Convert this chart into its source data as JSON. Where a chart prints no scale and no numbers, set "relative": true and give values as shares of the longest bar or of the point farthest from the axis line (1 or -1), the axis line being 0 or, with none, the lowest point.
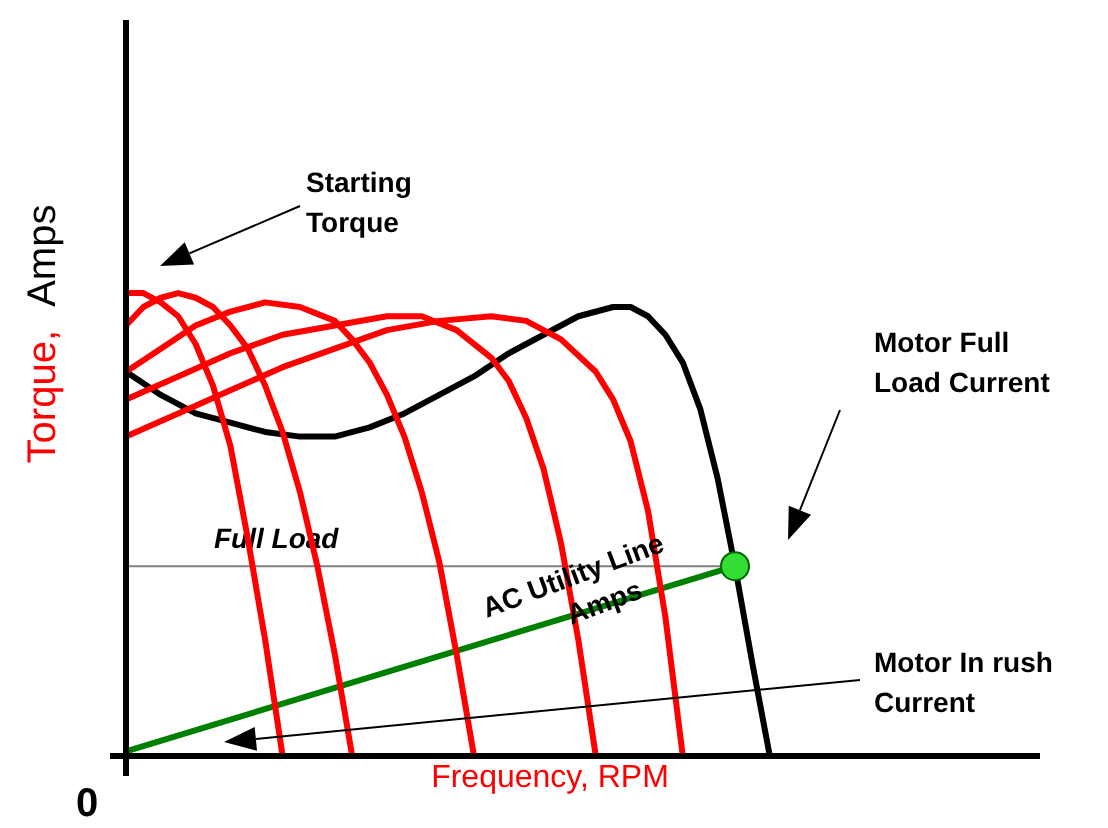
{
  "chart_data": {
    "type": "line",
    "relative": true,
    "xlabel": "Frequency, RPM",
    "ylabel": "Torque, Amps",
    "marker": "none",
    "line_style": "solid",
    "legend": false,
    "grid": false,
    "categories": [
      null,
      null,
      null,
      null,
      null,
      null,
      null,
      null,
      null,
      null,
      null,
      null,
      null,
      null,
      null,
      null,
      null,
      null,
      null,
      null,
      null,
      null,
      null,
      null,
      null,
      null,
      null,
      null,
      null,
      null,
      null,
      null,
      null,
      null,
      null,
      null,
      null,
      null,
      null,
      null,
      null,
      null,
      null,
      null,
      null,
      null,
      null,
      null,
      null,
      null,
      null
    ],
    "series": [
      {
        "color": "#ff0000",
        "values": [
          1.0,
          1.0,
          0.98,
          0.95,
          0.89,
          0.8,
          0.67,
          0.47,
          0.25,
          0,
          null,
          null,
          null,
          null,
          null,
          null,
          null,
          null,
          null,
          null,
          null,
          null,
          null,
          null,
          null,
          null,
          null,
          null,
          null,
          null,
          null,
          null,
          null,
          null,
          null,
          null,
          null,
          null,
          null,
          null,
          null,
          null,
          null,
          null,
          null,
          null,
          null,
          null,
          null,
          null,
          null
        ]
      },
      {
        "color": "#ff0000",
        "values": [
          0.93,
          0.97,
          0.99,
          1.0,
          0.99,
          0.97,
          0.93,
          0.88,
          0.8,
          0.7,
          0.57,
          0.41,
          0.22,
          0,
          null,
          null,
          null,
          null,
          null,
          null,
          null,
          null,
          null,
          null,
          null,
          null,
          null,
          null,
          null,
          null,
          null,
          null,
          null,
          null,
          null,
          null,
          null,
          null,
          null,
          null,
          null,
          null,
          null,
          null,
          null,
          null,
          null,
          null,
          null,
          null,
          null
        ]
      },
      {
        "color": "#ff0000",
        "values": [
          0.83,
          null,
          0.88,
          null,
          0.93,
          null,
          0.96,
          null,
          0.98,
          null,
          0.97,
          null,
          0.94,
          0.9,
          0.85,
          0.78,
          0.69,
          0.57,
          0.42,
          0.22,
          0,
          null,
          null,
          null,
          null,
          null,
          null,
          null,
          null,
          null,
          null,
          null,
          null,
          null,
          null,
          null,
          null,
          null,
          null,
          null,
          null,
          null,
          null,
          null,
          null,
          null,
          null,
          null,
          null,
          null,
          null
        ]
      },
      {
        "color": "#ff0000",
        "values": [
          0.77,
          null,
          null,
          0.82,
          null,
          null,
          0.87,
          null,
          null,
          0.91,
          null,
          null,
          0.93,
          null,
          null,
          0.95,
          null,
          0.95,
          null,
          0.92,
          null,
          0.86,
          0.81,
          0.73,
          0.62,
          0.46,
          0.25,
          0,
          null,
          null,
          null,
          null,
          null,
          null,
          null,
          null,
          null,
          null,
          null,
          null,
          null,
          null,
          null,
          null,
          null,
          null,
          null,
          null,
          null,
          null,
          null
        ]
      },
      {
        "color": "#ff0000",
        "values": [
          0.69,
          null,
          null,
          0.74,
          null,
          null,
          0.79,
          null,
          null,
          0.84,
          null,
          null,
          0.88,
          null,
          null,
          0.92,
          null,
          null,
          0.94,
          null,
          null,
          0.95,
          null,
          0.94,
          null,
          0.9,
          null,
          0.83,
          0.77,
          0.68,
          0.53,
          0.3,
          0,
          null,
          null,
          null,
          null,
          null,
          null,
          null,
          null,
          null,
          null,
          null,
          null,
          null,
          null,
          null,
          null,
          null,
          null
        ]
      },
      {
        "color": "#000000",
        "values": [
          0.83,
          null,
          0.78,
          null,
          0.74,
          null,
          0.72,
          null,
          0.7,
          null,
          0.69,
          null,
          0.69,
          null,
          0.71,
          null,
          0.74,
          null,
          0.78,
          null,
          0.82,
          null,
          0.87,
          null,
          0.91,
          null,
          0.95,
          null,
          0.97,
          0.97,
          0.95,
          0.91,
          0.85,
          0.75,
          0.6,
          0.41,
          0.2,
          0,
          null,
          null,
          null,
          null,
          null,
          null,
          null,
          null,
          null,
          null,
          null,
          null,
          null
        ]
      },
      {
        "color": "#008000",
        "values": [
          0.01,
          null,
          null,
          null,
          null,
          null,
          null,
          null,
          null,
          null,
          null,
          null,
          null,
          null,
          null,
          null,
          null,
          null,
          null,
          null,
          null,
          null,
          null,
          null,
          null,
          null,
          null,
          null,
          null,
          null,
          null,
          null,
          null,
          null,
          null,
          0.41,
          null,
          null,
          null,
          null,
          null,
          null,
          null,
          null,
          null,
          null,
          null,
          null,
          null,
          null,
          null
        ]
      }
    ],
    "ref_lines": [
      {
        "axis": "y",
        "value": 0.41,
        "label": "Full Load",
        "color": "#808080"
      }
    ],
    "annotations": [
      "Starting Torque",
      "Motor Full Load Current",
      "AC Utility Line Amps",
      "Motor In rush Current",
      "0"
    ]
  }
}
